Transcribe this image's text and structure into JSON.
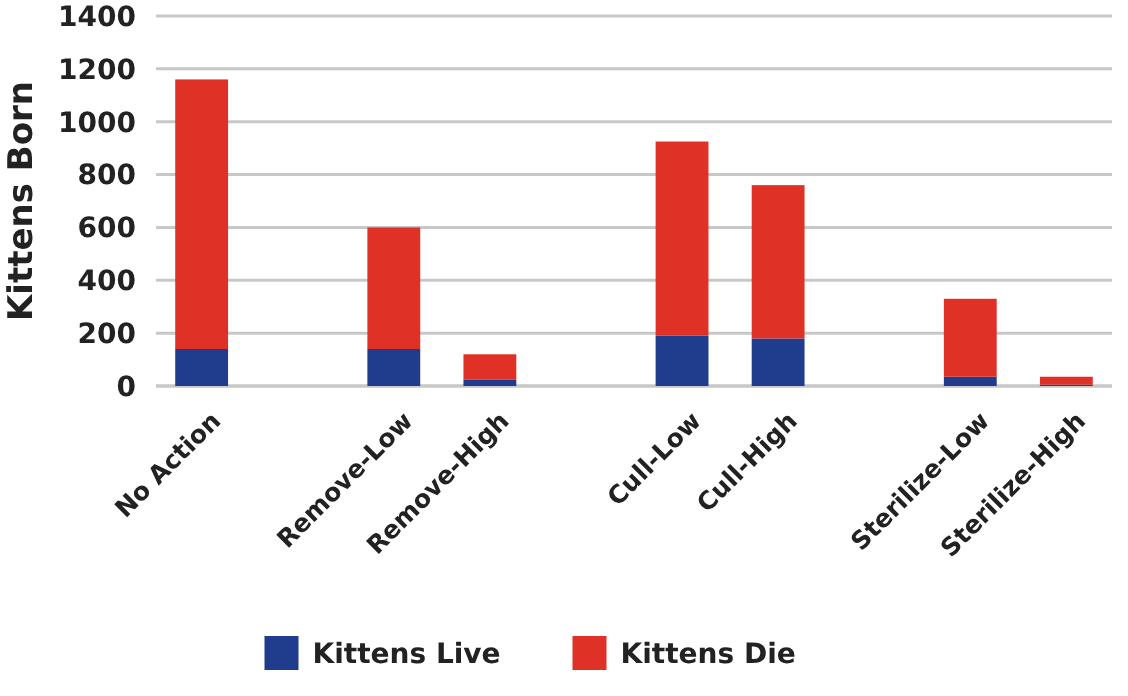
{
  "chart_data": {
    "type": "bar",
    "ylabel": "Kittens Born",
    "categories": [
      "No Action",
      null,
      "Remove-Low",
      "Remove-High",
      null,
      "Cull-Low",
      "Cull-High",
      null,
      "Sterilize-Low",
      "Sterilize-High"
    ],
    "series": [
      {
        "name": "Kittens Live",
        "color": "#1f3d8c",
        "values": [
          140,
          null,
          140,
          25,
          null,
          190,
          180,
          null,
          35,
          5
        ]
      },
      {
        "name": "Kittens Die",
        "color": "#e03127",
        "values": [
          1020,
          null,
          460,
          95,
          null,
          735,
          580,
          null,
          295,
          30
        ]
      }
    ],
    "stacked": true,
    "ylim": [
      0,
      1400
    ],
    "yticks": [
      0,
      200,
      400,
      600,
      800,
      1000,
      1200,
      1400
    ],
    "grid": "y",
    "legend": "bottom"
  }
}
